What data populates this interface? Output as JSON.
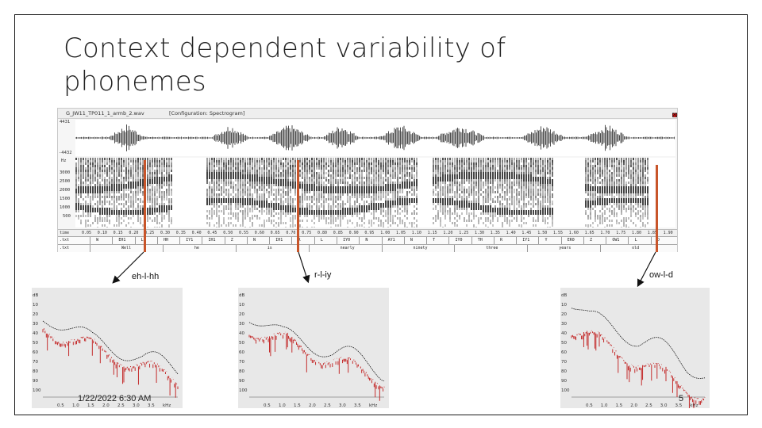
{
  "slide": {
    "title_line1": "Context dependent variability of",
    "title_line2": "phonemes",
    "footer_date": "1/22/2022 6:30 AM",
    "page_number": "5"
  },
  "praat": {
    "file_name": "G_JW11_TP011_1_armb_2.wav",
    "configuration": "[Configuration: Spectrogram]",
    "wave_top": "4431",
    "wave_bottom": "-4432",
    "hz_unit": "Hz",
    "hz_ticks": [
      "3000",
      "2500",
      "2000",
      "1500",
      "1000",
      "500"
    ],
    "time_label": "time",
    "time_ticks": [
      "0.05",
      "0.10",
      "0.15",
      "0.20",
      "0.25",
      "0.30",
      "0.35",
      "0.40",
      "0.45",
      "0.50",
      "0.55",
      "0.60",
      "0.65",
      "0.70",
      "0.75",
      "0.80",
      "0.85",
      "0.90",
      "0.95",
      "1.00",
      "1.05",
      "1.10",
      "1.15",
      "1.20",
      "1.25",
      "1.30",
      "1.35",
      "1.40",
      "1.45",
      "1.50",
      "1.55",
      "1.60",
      "1.65",
      "1.70",
      "1.75",
      "1.80",
      "1.85",
      "1.90"
    ],
    "phone_tier_name": ".txt",
    "phone_labels": [
      "W",
      "EH1",
      "L",
      "HH",
      "IY1",
      "IH1",
      "Z",
      "N",
      "IH1",
      "R",
      "L",
      "IY0",
      "N",
      "AY1",
      "N",
      "T",
      "IY0",
      "TH",
      "R",
      "IY1",
      "Y",
      "ER0",
      "Z",
      "OW1",
      "L",
      "D"
    ],
    "word_tier_name": ".txt",
    "word_labels": [
      "Well",
      "he",
      "is",
      "nearly",
      "ninety",
      "three",
      "years",
      "old"
    ]
  },
  "annotations": {
    "left": "eh-l-hh",
    "middle": "r-l-iy",
    "right": "ow-l-d"
  },
  "spectra": {
    "y_unit": "dB",
    "y_ticks": [
      "10",
      "20",
      "30",
      "40",
      "50",
      "60",
      "70",
      "80",
      "90",
      "100"
    ],
    "x_ticks": [
      "0.5",
      "1.0",
      "1.5",
      "2.0",
      "2.5",
      "3.0",
      "3.5"
    ],
    "x_unit": "kHz"
  },
  "colors": {
    "marker": "#c8552a",
    "spectrum_line": "#c01818"
  }
}
